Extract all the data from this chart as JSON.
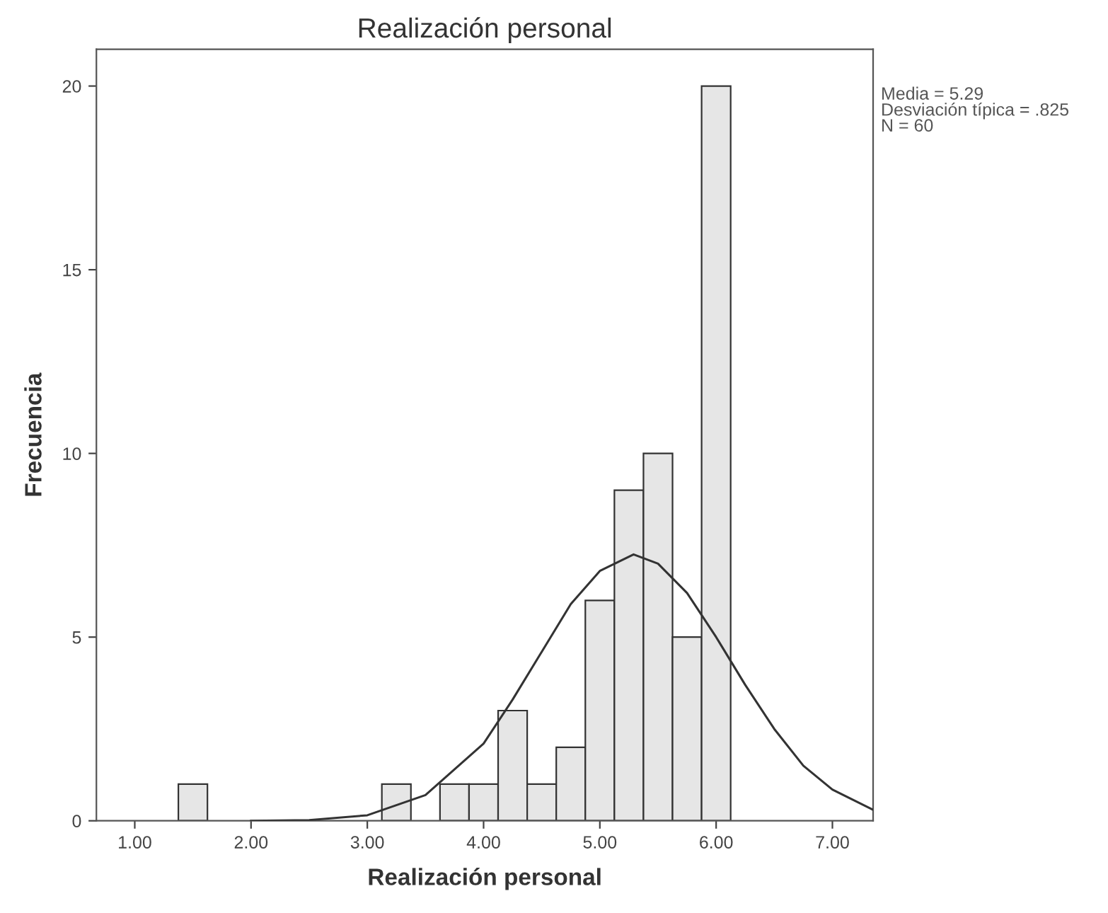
{
  "chart_data": {
    "type": "histogram",
    "title": "Realización personal",
    "xlabel": "Realización personal",
    "ylabel": "Frecuencia",
    "bins": [
      1.375,
      1.625,
      1.875,
      2.125,
      2.375,
      2.625,
      2.875,
      3.125,
      3.375,
      3.625,
      3.875,
      4.125,
      4.375,
      4.625,
      4.875,
      5.125,
      5.375,
      5.625,
      5.875,
      6.125
    ],
    "values": [
      1,
      0,
      0,
      0,
      0,
      0,
      0,
      1,
      0,
      1,
      1,
      3,
      1,
      2,
      6,
      9,
      10,
      5,
      20
    ],
    "color": "#e6e6e6",
    "series": [
      {
        "type": "line",
        "color": "#333333",
        "x": [
          2.0,
          2.5,
          3.0,
          3.5,
          4.0,
          4.25,
          4.5,
          4.75,
          5.0,
          5.29,
          5.5,
          5.75,
          6.0,
          6.25,
          6.5,
          6.75,
          7.0,
          7.35
        ],
        "values": [
          0,
          0.02,
          0.15,
          0.7,
          2.1,
          3.3,
          4.6,
          5.9,
          6.8,
          7.25,
          7.0,
          6.2,
          5.0,
          3.7,
          2.5,
          1.5,
          0.85,
          0.3
        ]
      }
    ],
    "xlim": [
      0.67,
      7.35
    ],
    "ylim": [
      0,
      21
    ],
    "xticks": [
      {
        "value": 1,
        "label": "1.00"
      },
      {
        "value": 2,
        "label": "2.00"
      },
      {
        "value": 3,
        "label": "3.00"
      },
      {
        "value": 4,
        "label": "4.00"
      },
      {
        "value": 5,
        "label": "5.00"
      },
      {
        "value": 6,
        "label": "6.00"
      },
      {
        "value": 7,
        "label": "7.00"
      }
    ],
    "yticks": [
      0,
      5,
      10,
      15,
      20
    ],
    "annotations": [
      "Media = 5.29\nDesviación típica = .825\nN = 60"
    ],
    "grid": false,
    "legend": false
  }
}
